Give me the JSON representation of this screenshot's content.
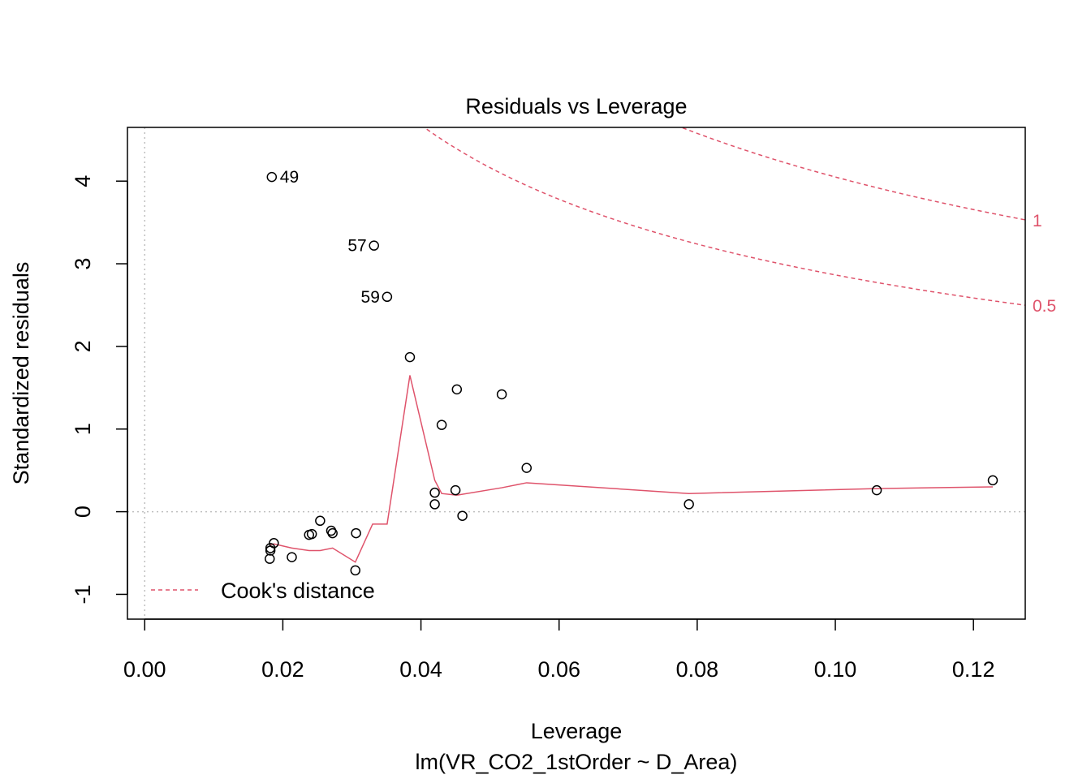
{
  "chart_data": {
    "type": "scatter",
    "title": "Residuals vs Leverage",
    "xlabel": "Leverage",
    "sublabel": "lm(VR_CO2_1stOrder ~ D_Area)",
    "ylabel": "Standardized residuals",
    "xlim": [
      -0.0025,
      0.1275
    ],
    "ylim": [
      -1.3,
      4.65
    ],
    "x_ticks": [
      {
        "value": 0.0,
        "label": "0.00"
      },
      {
        "value": 0.02,
        "label": "0.02"
      },
      {
        "value": 0.04,
        "label": "0.04"
      },
      {
        "value": 0.06,
        "label": "0.06"
      },
      {
        "value": 0.08,
        "label": "0.08"
      },
      {
        "value": 0.1,
        "label": "0.10"
      },
      {
        "value": 0.12,
        "label": "0.12"
      }
    ],
    "y_ticks": [
      {
        "value": -1,
        "label": "-1"
      },
      {
        "value": 0,
        "label": "0"
      },
      {
        "value": 1,
        "label": "1"
      },
      {
        "value": 2,
        "label": "2"
      },
      {
        "value": 3,
        "label": "3"
      },
      {
        "value": 4,
        "label": "4"
      }
    ],
    "points": [
      {
        "x": 0.0184,
        "y": 4.05,
        "label": "49"
      },
      {
        "x": 0.0332,
        "y": 3.22,
        "label": "57"
      },
      {
        "x": 0.0351,
        "y": 2.6,
        "label": "59"
      },
      {
        "x": 0.0384,
        "y": 1.87
      },
      {
        "x": 0.0452,
        "y": 1.48
      },
      {
        "x": 0.0517,
        "y": 1.42
      },
      {
        "x": 0.043,
        "y": 1.05
      },
      {
        "x": 0.0553,
        "y": 0.53
      },
      {
        "x": 0.1228,
        "y": 0.38
      },
      {
        "x": 0.106,
        "y": 0.26
      },
      {
        "x": 0.045,
        "y": 0.26
      },
      {
        "x": 0.042,
        "y": 0.23
      },
      {
        "x": 0.042,
        "y": 0.09
      },
      {
        "x": 0.0788,
        "y": 0.09
      },
      {
        "x": 0.046,
        "y": -0.05
      },
      {
        "x": 0.0254,
        "y": -0.11
      },
      {
        "x": 0.027,
        "y": -0.23
      },
      {
        "x": 0.0272,
        "y": -0.26
      },
      {
        "x": 0.0306,
        "y": -0.26
      },
      {
        "x": 0.0238,
        "y": -0.28
      },
      {
        "x": 0.0242,
        "y": -0.27
      },
      {
        "x": 0.0187,
        "y": -0.38
      },
      {
        "x": 0.0182,
        "y": -0.44
      },
      {
        "x": 0.0182,
        "y": -0.47
      },
      {
        "x": 0.0213,
        "y": -0.55
      },
      {
        "x": 0.0181,
        "y": -0.57
      },
      {
        "x": 0.0305,
        "y": -0.71
      }
    ],
    "smoother": {
      "name": "smoother",
      "color": "#DF536B",
      "x": [
        0.0182,
        0.0187,
        0.0213,
        0.0238,
        0.0254,
        0.0272,
        0.0305,
        0.033,
        0.0351,
        0.0384,
        0.042,
        0.043,
        0.0452,
        0.0517,
        0.0553,
        0.0788,
        0.106,
        0.1228
      ],
      "y": [
        -0.4,
        -0.39,
        -0.44,
        -0.47,
        -0.47,
        -0.44,
        -0.61,
        -0.15,
        -0.15,
        1.65,
        0.38,
        0.22,
        0.2,
        0.29,
        0.35,
        0.22,
        0.28,
        0.3
      ]
    },
    "cooks_distance": {
      "legend_label": "Cook's distance",
      "legend_position": "bottom-left",
      "color": "#DF536B",
      "contours": [
        {
          "level": 1,
          "label": "1",
          "coef": 1.35
        },
        {
          "level": 0.5,
          "label": "0.5",
          "coef": 0.955
        }
      ]
    },
    "reference_lines": {
      "h": 0,
      "v": 0,
      "color": "#BEBEBE"
    },
    "grid": false
  }
}
